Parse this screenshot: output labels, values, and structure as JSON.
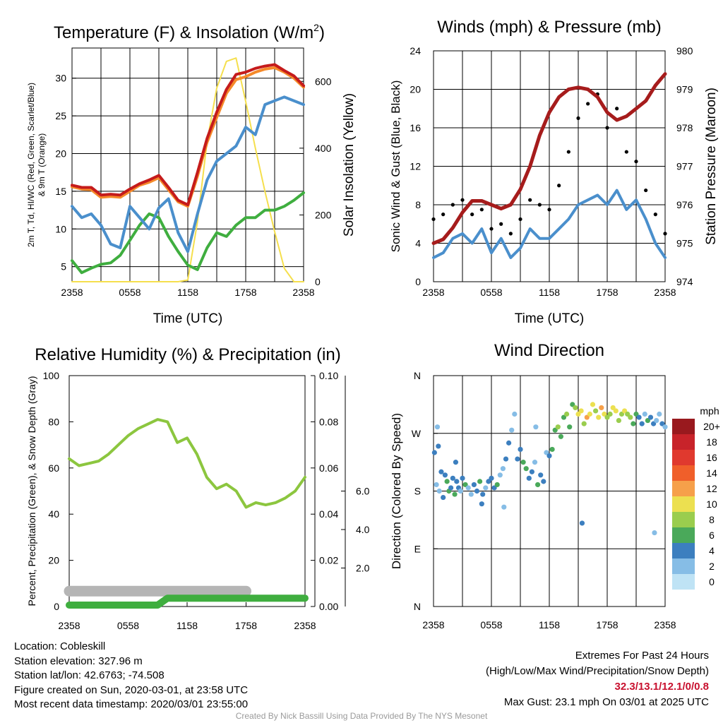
{
  "footer": {
    "location": "Location: Cobleskill",
    "elevation": "Station elevation: 327.96 m",
    "latlon": "Station lat/lon: 42.6763; -74.508",
    "created": "Figure created on Sun, 2020-03-01, at 23:58 UTC",
    "recent": "Most recent data timestamp: 2020/03/01 23:55:00",
    "extremes_title": "Extremes For Past 24 Hours",
    "extremes_desc": "(High/Low/Max Wind/Precipitation/Snow Depth)",
    "extremes_values": "32.3/13.1/12.1/0/0.8",
    "max_gust": "Max Gust: 23.1 mph On 03/01 at 2025 UTC",
    "credit": "Created By Nick Bassill Using Data Provided By The NYS Mesonet"
  },
  "chart_data": [
    {
      "id": "temperature",
      "type": "line",
      "title": "Temperature (F) & Insolation (W/m",
      "title_superscript": "2",
      "title_close": ")",
      "xlabel": "Time (UTC)",
      "xticks": [
        "2358",
        "0558",
        "1158",
        "1758",
        "2358"
      ],
      "ylabel_left_lines": [
        "2m T, Td, HI/WC (Red, Green, Scarlet/Blue)",
        "& 9m T (Orange)"
      ],
      "ylabel_right": "Solar Insolation (Yellow)",
      "ylim": [
        3,
        34
      ],
      "yticks": [
        5,
        10,
        15,
        20,
        25,
        30
      ],
      "y2lim": [
        0,
        700
      ],
      "y2ticks": [
        0,
        200,
        400,
        600
      ],
      "x_hours": [
        0,
        1,
        2,
        3,
        4,
        5,
        6,
        7,
        8,
        9,
        10,
        11,
        12,
        13,
        14,
        15,
        16,
        17,
        18,
        19,
        20,
        21,
        22,
        23,
        24
      ],
      "series": [
        {
          "role": "2m T",
          "color": "#c51b1b",
          "axis": "left",
          "values": [
            15.8,
            15.5,
            15.5,
            14.5,
            14.6,
            14.5,
            15.3,
            16.0,
            16.5,
            17.1,
            15.5,
            13.8,
            13.2,
            17.5,
            22.0,
            25.5,
            28.5,
            30.5,
            30.8,
            31.3,
            31.6,
            31.8,
            31.0,
            30.3,
            29.0
          ]
        },
        {
          "role": "9m T",
          "color": "#f58a2a",
          "axis": "left",
          "values": [
            15.6,
            15.3,
            15.2,
            14.2,
            14.3,
            14.2,
            15.0,
            15.8,
            16.2,
            16.8,
            15.2,
            13.6,
            13.0,
            17.0,
            21.5,
            24.8,
            28.0,
            29.8,
            30.2,
            30.8,
            31.2,
            31.4,
            30.8,
            30.0,
            28.8
          ]
        },
        {
          "role": "HI/WC",
          "color": "#4a8fcc",
          "axis": "left",
          "values": [
            13.0,
            11.5,
            12.0,
            10.5,
            8.0,
            7.5,
            13.0,
            11.5,
            10.0,
            12.8,
            14.0,
            9.5,
            7.0,
            12.0,
            16.5,
            19.0,
            20.0,
            21.0,
            23.5,
            22.5,
            26.5,
            27.0,
            27.5,
            27.0,
            26.5
          ]
        },
        {
          "role": "2m Td",
          "color": "#3fae3f",
          "axis": "left",
          "values": [
            5.8,
            4.2,
            4.8,
            5.3,
            5.5,
            6.5,
            8.5,
            10.5,
            12.0,
            11.5,
            9.0,
            7.0,
            5.2,
            4.6,
            7.5,
            9.5,
            9.0,
            10.5,
            11.5,
            11.5,
            12.5,
            12.5,
            13.0,
            13.8,
            14.8
          ]
        },
        {
          "role": "Solar Insolation",
          "color": "#f5df4d",
          "axis": "right",
          "values": [
            0,
            0,
            0,
            0,
            0,
            0,
            0,
            0,
            0,
            0,
            0,
            0,
            5,
            180,
            420,
            580,
            660,
            670,
            540,
            400,
            270,
            150,
            40,
            0,
            0
          ]
        }
      ]
    },
    {
      "id": "winds",
      "type": "line",
      "title": "Winds (mph) & Pressure (mb)",
      "xlabel": "Time (UTC)",
      "xticks": [
        "2358",
        "0558",
        "1158",
        "1758",
        "2358"
      ],
      "ylabel_left": "Sonic Wind & Gust (Blue, Black)",
      "ylabel_right": "Station Pressure (Maroon)",
      "ylim": [
        0,
        24
      ],
      "yticks": [
        0,
        4,
        8,
        12,
        16,
        20,
        24
      ],
      "y2lim": [
        974,
        980
      ],
      "y2ticks": [
        974,
        975,
        976,
        977,
        978,
        979,
        980
      ],
      "x_hours": [
        0,
        1,
        2,
        3,
        4,
        5,
        6,
        7,
        8,
        9,
        10,
        11,
        12,
        13,
        14,
        15,
        16,
        17,
        18,
        19,
        20,
        21,
        22,
        23,
        24
      ],
      "series": [
        {
          "role": "Station Pressure",
          "color": "#a61c1c",
          "axis": "right",
          "values": [
            975.0,
            975.1,
            975.4,
            975.8,
            976.1,
            976.1,
            976.0,
            975.9,
            976.0,
            976.4,
            977.0,
            977.8,
            978.4,
            978.8,
            979.0,
            979.05,
            979.0,
            978.8,
            978.4,
            978.2,
            978.3,
            978.5,
            978.7,
            979.1,
            979.4
          ]
        },
        {
          "role": "Sonic Wind",
          "color": "#4a8fcc",
          "axis": "left",
          "values": [
            2.5,
            3.0,
            4.5,
            5.0,
            4.0,
            5.5,
            3.0,
            4.5,
            2.5,
            3.5,
            5.5,
            4.5,
            4.5,
            5.5,
            6.5,
            8.0,
            8.5,
            9.0,
            8.0,
            9.5,
            7.5,
            8.5,
            6.5,
            4.0,
            2.5
          ]
        },
        {
          "role": "Gust",
          "color": "#000000",
          "axis": "left",
          "values": [
            6.5,
            7.0,
            8.0,
            8.5,
            7.0,
            7.5,
            5.5,
            6.0,
            5.0,
            6.5,
            8.5,
            8.0,
            7.5,
            10.0,
            13.5,
            17.0,
            18.5,
            19.5,
            16.0,
            18.0,
            13.5,
            12.5,
            9.5,
            7.0,
            5.0
          ]
        }
      ]
    },
    {
      "id": "humidity",
      "type": "line",
      "title": "Relative Humidity (%) & Precipitation (in)",
      "xticks": [
        "2358",
        "0558",
        "1158",
        "1758",
        "2358"
      ],
      "ylabel_left": "Percent, Precipitation (Green), & Snow Depth (Gray)",
      "ylim": [
        0,
        100
      ],
      "yticks": [
        0,
        20,
        40,
        60,
        80,
        100
      ],
      "y2lim": [
        0,
        0.1
      ],
      "y2ticks": [
        "0.00",
        "0.02",
        "0.04",
        "0.06",
        "0.08",
        "0.10"
      ],
      "y3lim": [
        0,
        12
      ],
      "y3ticks": [
        "2.0",
        "4.0",
        "6.0"
      ],
      "x_hours": [
        0,
        1,
        2,
        3,
        4,
        5,
        6,
        7,
        8,
        9,
        10,
        11,
        12,
        13,
        14,
        15,
        16,
        17,
        18,
        19,
        20,
        21,
        22,
        23,
        24
      ],
      "series": [
        {
          "role": "Relative Humidity",
          "color": "#8cc63f",
          "axis": "left",
          "values": [
            64,
            61,
            62,
            63,
            66,
            70,
            74,
            77,
            79,
            81,
            80,
            71,
            73,
            66,
            56,
            51,
            53,
            50,
            43,
            45,
            44,
            45,
            47,
            50,
            56
          ]
        },
        {
          "role": "Precipitation",
          "color": "#3fae3f",
          "axis": "y2",
          "values": [
            0,
            0,
            0,
            0,
            0,
            0,
            0,
            0,
            0,
            0,
            0.003,
            0.003,
            0.003,
            0.003,
            0.003,
            0.003,
            0.003,
            0.003,
            0.003,
            0.003,
            0.003,
            0.003,
            0.003,
            0.003,
            0.003
          ]
        },
        {
          "role": "Snow Depth",
          "color": "#b5b5b5",
          "axis": "y3",
          "x_hours": [
            0,
            10.5,
            12,
            18
          ],
          "values": [
            0.8,
            0.8,
            0.8,
            0.8
          ]
        }
      ]
    },
    {
      "id": "wind_direction",
      "type": "scatter",
      "title": "Wind Direction",
      "xticks": [
        "2358",
        "0558",
        "1158",
        "1758",
        "2358"
      ],
      "ylabel_left": "Direction (Colored By Speed)",
      "ylim": [
        360,
        0
      ],
      "yticks": [
        "N",
        "W",
        "S",
        "E",
        "N"
      ],
      "colorbar": {
        "title": "mph",
        "labels": [
          "20+",
          "18",
          "16",
          "14",
          "12",
          "10",
          "8",
          "6",
          "4",
          "2",
          "0"
        ],
        "colors": [
          "#99191e",
          "#c8232a",
          "#e0392e",
          "#f05f2a",
          "#f6a04a",
          "#ece050",
          "#9acd4e",
          "#4aa95a",
          "#3c7fbf",
          "#86bde6",
          "#bfe3f5"
        ]
      },
      "points": {
        "x_hours": [
          0.1,
          0.3,
          0.5,
          0.6,
          0.8,
          1.0,
          1.2,
          1.4,
          1.6,
          1.8,
          2.0,
          2.2,
          2.4,
          2.6,
          2.8,
          3.0,
          3.3,
          3.6,
          3.9,
          4.2,
          4.5,
          4.8,
          5.1,
          5.4,
          5.7,
          6.0,
          6.3,
          6.6,
          6.9,
          7.2,
          7.5,
          7.8,
          8.1,
          8.4,
          8.7,
          9.0,
          9.3,
          9.6,
          9.9,
          10.2,
          10.5,
          10.8,
          11.1,
          11.4,
          11.7,
          12.0,
          12.3,
          12.6,
          12.9,
          13.2,
          13.5,
          13.8,
          14.1,
          14.4,
          14.7,
          15.0,
          15.3,
          15.6,
          15.9,
          16.2,
          16.5,
          16.8,
          17.1,
          17.4,
          17.7,
          18.0,
          18.3,
          18.6,
          18.9,
          19.2,
          19.5,
          19.8,
          20.1,
          20.4,
          20.7,
          21.0,
          21.3,
          21.6,
          21.9,
          22.2,
          22.5,
          22.8,
          23.1,
          23.4,
          23.7,
          24.0,
          0.4,
          2.3,
          5.0,
          7.3,
          10.6,
          15.4,
          22.9
        ],
        "direction_deg": [
          240,
          190,
          250,
          180,
          210,
          170,
          205,
          195,
          180,
          185,
          200,
          175,
          195,
          185,
          180,
          200,
          190,
          185,
          175,
          190,
          180,
          195,
          175,
          185,
          195,
          200,
          185,
          190,
          205,
          215,
          230,
          255,
          275,
          300,
          230,
          245,
          225,
          215,
          200,
          210,
          225,
          190,
          205,
          195,
          240,
          235,
          245,
          275,
          280,
          265,
          295,
          300,
          280,
          315,
          310,
          300,
          305,
          285,
          295,
          300,
          315,
          305,
          295,
          310,
          300,
          295,
          300,
          310,
          305,
          290,
          300,
          305,
          300,
          295,
          285,
          300,
          295,
          285,
          300,
          290,
          295,
          285,
          290,
          300,
          285,
          280,
          280,
          225,
          160,
          155,
          280,
          130,
          115
        ],
        "speed_mph": [
          3,
          2,
          4,
          1,
          3,
          3,
          4,
          6,
          5,
          4,
          3,
          6,
          4,
          3,
          2,
          4,
          5,
          2,
          1,
          3,
          4,
          5,
          3,
          2,
          4,
          4,
          3,
          5,
          2,
          1,
          3,
          4,
          2,
          1,
          4,
          3,
          5,
          6,
          4,
          3,
          2,
          5,
          4,
          3,
          2,
          3,
          5,
          6,
          7,
          5,
          6,
          8,
          6,
          5,
          7,
          9,
          10,
          8,
          12,
          10,
          9,
          8,
          10,
          11,
          9,
          8,
          7,
          9,
          10,
          8,
          7,
          9,
          8,
          7,
          6,
          5,
          4,
          3,
          2,
          5,
          4,
          3,
          2,
          1,
          3,
          2,
          2,
          3,
          4,
          2,
          1,
          4,
          1
        ]
      }
    }
  ]
}
